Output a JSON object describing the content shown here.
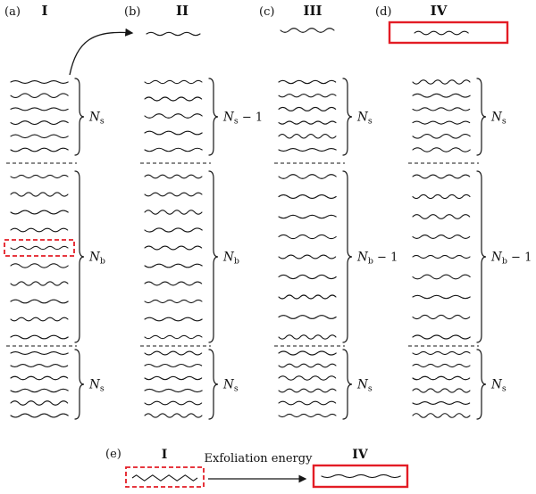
{
  "figure": {
    "line_color": "#161616",
    "accent_color": "#e31c25",
    "panels": [
      {
        "id": "a",
        "label": "(a)",
        "title": "I",
        "free_layer": false,
        "free_layer_boxed": false,
        "stacks": [
          {
            "n": 6,
            "brace": {
              "base": "N",
              "sub": "s",
              "suffix": ""
            }
          },
          {
            "n": 10,
            "brace": {
              "base": "N",
              "sub": "b",
              "suffix": ""
            },
            "boxed_line": 4
          },
          {
            "n": 6,
            "brace": {
              "base": "N",
              "sub": "s",
              "suffix": ""
            }
          }
        ]
      },
      {
        "id": "b",
        "label": "(b)",
        "title": "II",
        "free_layer": true,
        "free_layer_boxed": false,
        "stacks": [
          {
            "n": 5,
            "brace": {
              "base": "N",
              "sub": "s",
              "suffix": " − 1"
            }
          },
          {
            "n": 10,
            "brace": {
              "base": "N",
              "sub": "b",
              "suffix": ""
            }
          },
          {
            "n": 6,
            "brace": {
              "base": "N",
              "sub": "s",
              "suffix": ""
            }
          }
        ]
      },
      {
        "id": "c",
        "label": "(c)",
        "title": "III",
        "free_layer": true,
        "free_layer_boxed": false,
        "stacks": [
          {
            "n": 6,
            "brace": {
              "base": "N",
              "sub": "s",
              "suffix": ""
            }
          },
          {
            "n": 9,
            "brace": {
              "base": "N",
              "sub": "b",
              "suffix": " − 1"
            }
          },
          {
            "n": 6,
            "brace": {
              "base": "N",
              "sub": "s",
              "suffix": ""
            }
          }
        ]
      },
      {
        "id": "d",
        "label": "(d)",
        "title": "IV",
        "free_layer": true,
        "free_layer_boxed": true,
        "stacks": [
          {
            "n": 6,
            "brace": {
              "base": "N",
              "sub": "s",
              "suffix": ""
            }
          },
          {
            "n": 9,
            "brace": {
              "base": "N",
              "sub": "b",
              "suffix": " − 1"
            }
          },
          {
            "n": 6,
            "brace": {
              "base": "N",
              "sub": "s",
              "suffix": ""
            }
          }
        ]
      }
    ],
    "bottom_panel": {
      "label": "(e)",
      "left_title": "I",
      "right_title": "IV",
      "arrow_label": "Exfoliation energy"
    }
  }
}
